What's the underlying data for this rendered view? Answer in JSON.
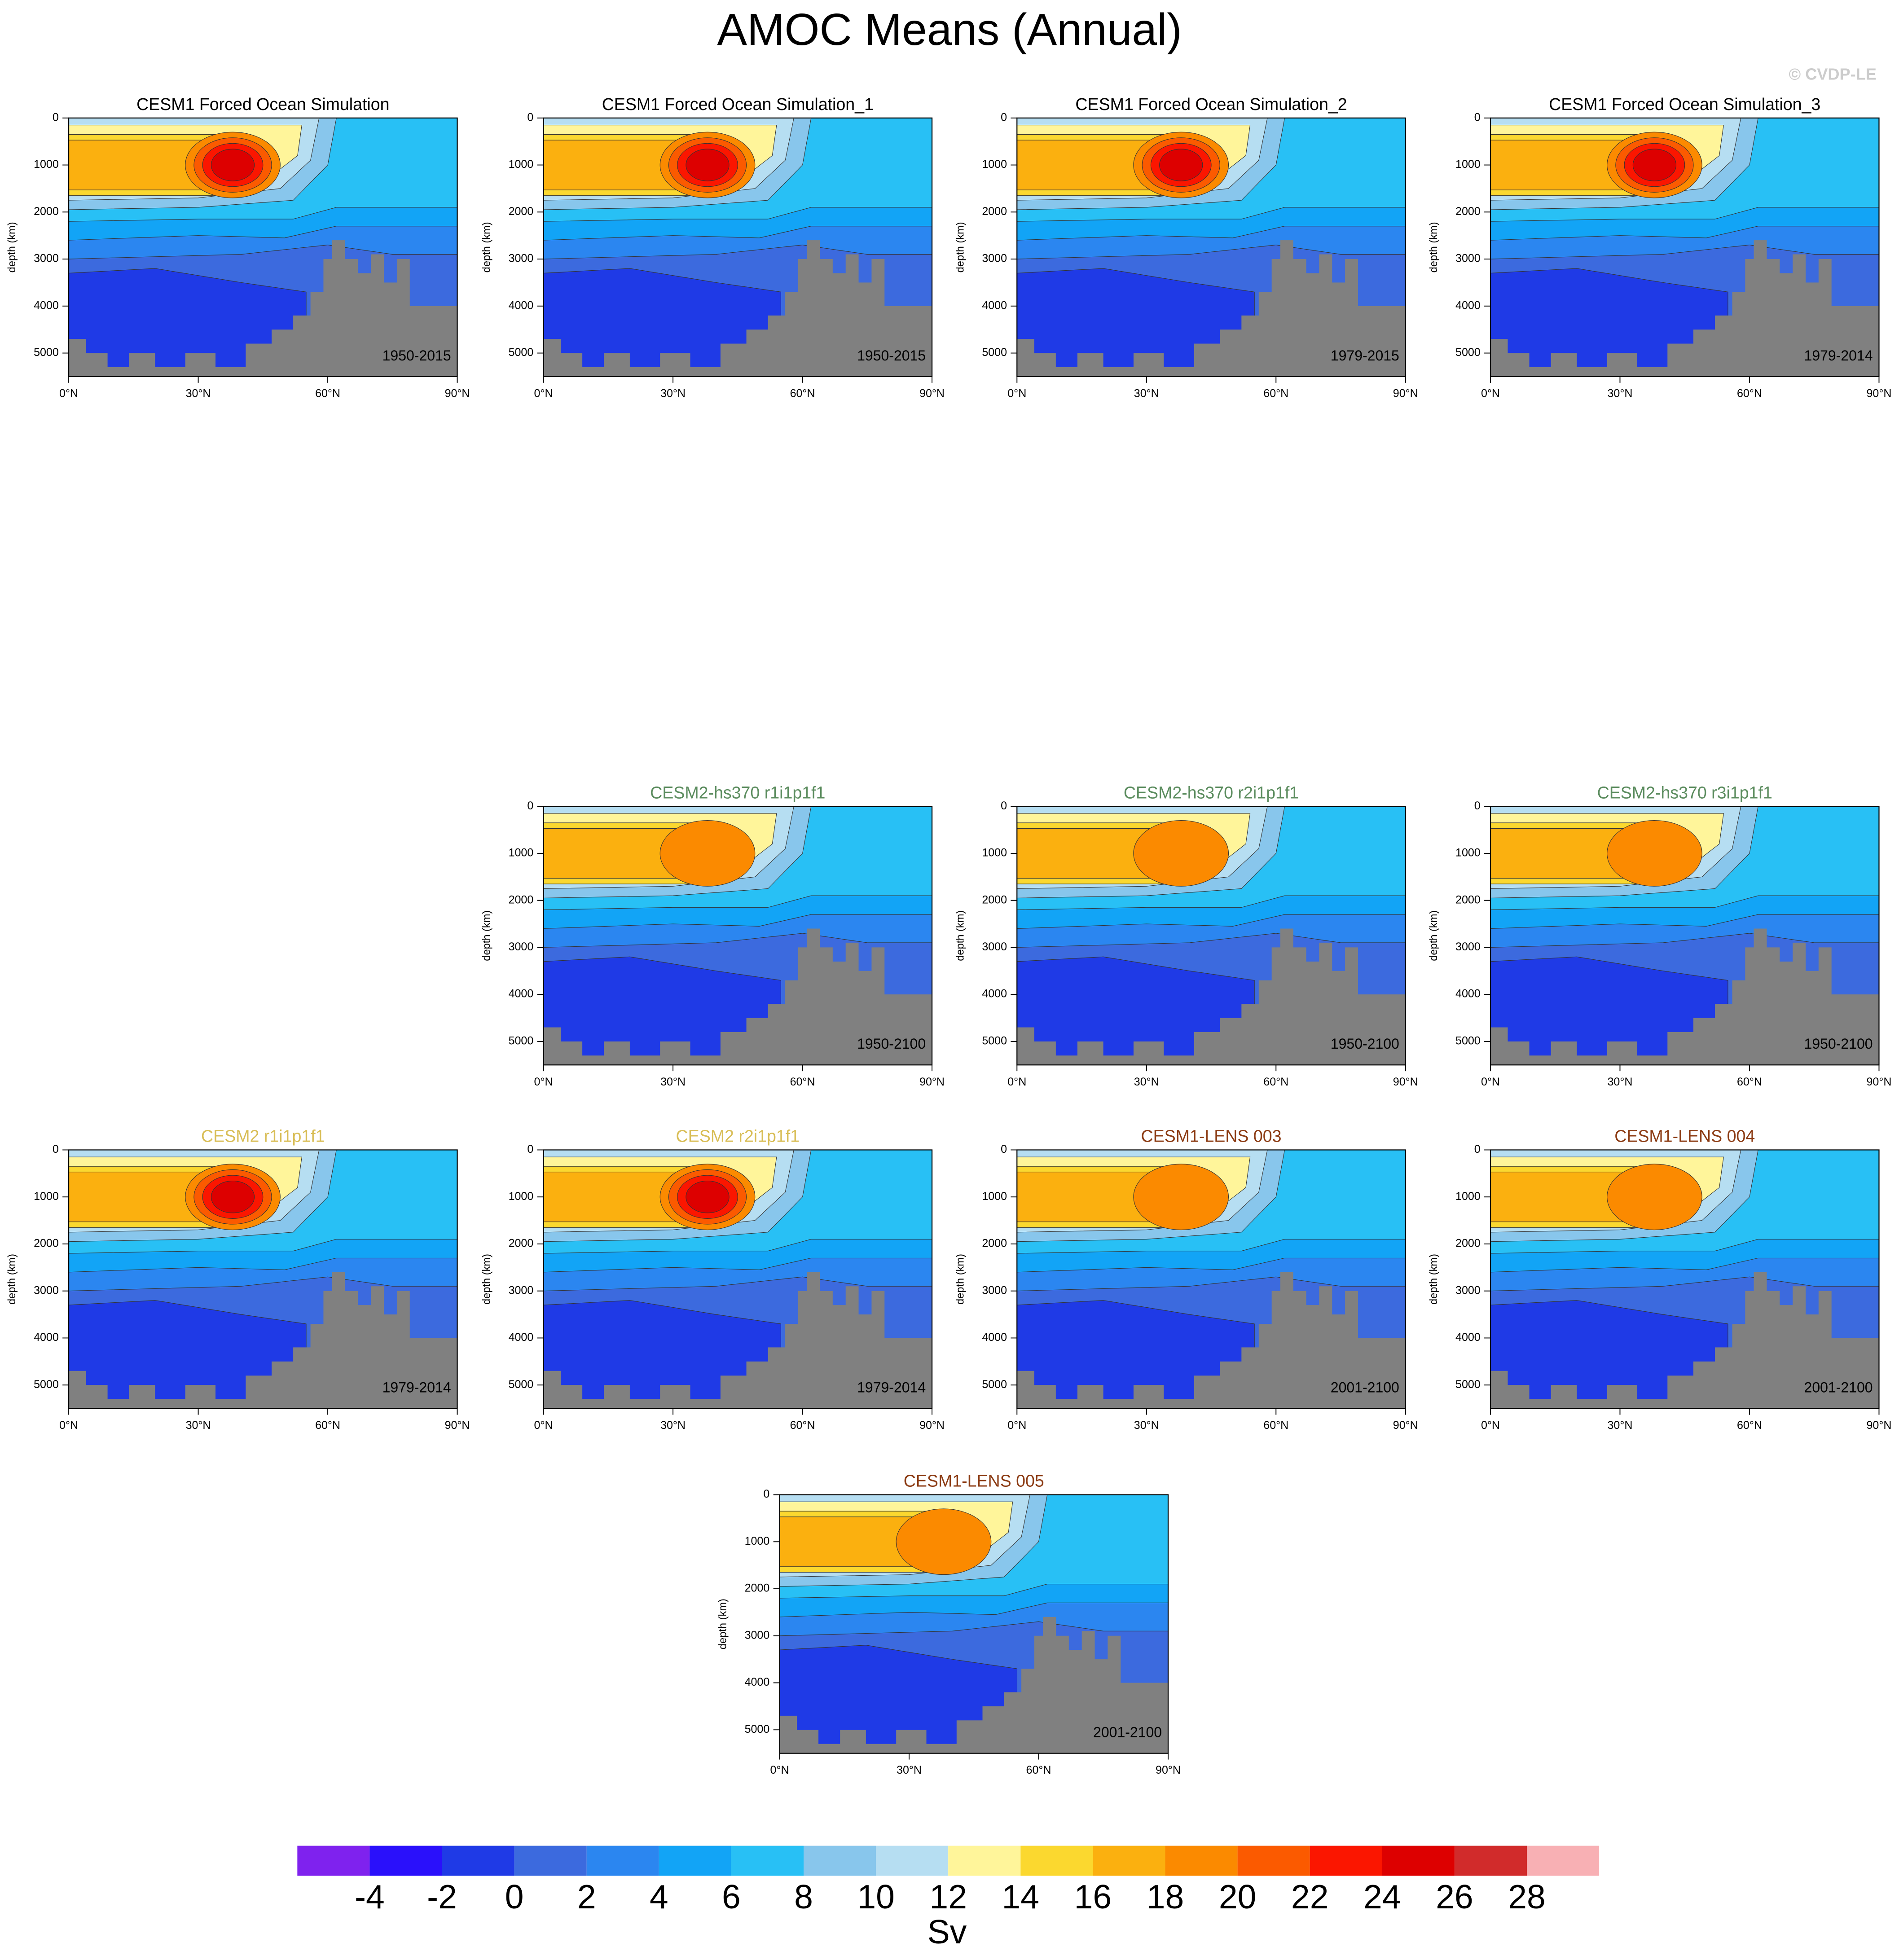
{
  "title": "AMOC Means (Annual)",
  "credit": "© CVDP-LE",
  "chart_data": [
    {
      "type": "contour",
      "title": "CESM1 Forced Ocean Simulation",
      "title_color": "#000000",
      "period": "1950-2015",
      "ylabel": "depth (km)",
      "xlim": [
        0,
        90
      ],
      "xticks": [
        {
          "value": 0,
          "label": "0°N"
        },
        {
          "value": 30,
          "label": "30°N"
        },
        {
          "value": 60,
          "label": "60°N"
        },
        {
          "value": 90,
          "label": "90°N"
        }
      ],
      "ylim": [
        0,
        5500
      ],
      "y_reversed": true,
      "yticks": [
        0,
        1000,
        2000,
        3000,
        4000,
        5000
      ]
    },
    {
      "type": "contour",
      "title": "CESM1 Forced Ocean Simulation_1",
      "title_color": "#000000",
      "period": "1950-2015",
      "ylabel": "depth (km)",
      "xlim": [
        0,
        90
      ],
      "xticks": [
        {
          "value": 0,
          "label": "0°N"
        },
        {
          "value": 30,
          "label": "30°N"
        },
        {
          "value": 60,
          "label": "60°N"
        },
        {
          "value": 90,
          "label": "90°N"
        }
      ],
      "ylim": [
        0,
        5500
      ],
      "y_reversed": true,
      "yticks": [
        0,
        1000,
        2000,
        3000,
        4000,
        5000
      ]
    },
    {
      "type": "contour",
      "title": "CESM1 Forced Ocean Simulation_2",
      "title_color": "#000000",
      "period": "1979-2015",
      "ylabel": "depth (km)",
      "xlim": [
        0,
        90
      ],
      "xticks": [
        {
          "value": 0,
          "label": "0°N"
        },
        {
          "value": 30,
          "label": "30°N"
        },
        {
          "value": 60,
          "label": "60°N"
        },
        {
          "value": 90,
          "label": "90°N"
        }
      ],
      "ylim": [
        0,
        5500
      ],
      "y_reversed": true,
      "yticks": [
        0,
        1000,
        2000,
        3000,
        4000,
        5000
      ]
    },
    {
      "type": "contour",
      "title": "CESM1 Forced Ocean Simulation_3",
      "title_color": "#000000",
      "period": "1979-2014",
      "ylabel": "depth (km)",
      "xlim": [
        0,
        90
      ],
      "xticks": [
        {
          "value": 0,
          "label": "0°N"
        },
        {
          "value": 30,
          "label": "30°N"
        },
        {
          "value": 60,
          "label": "60°N"
        },
        {
          "value": 90,
          "label": "90°N"
        }
      ],
      "ylim": [
        0,
        5500
      ],
      "y_reversed": true,
      "yticks": [
        0,
        1000,
        2000,
        3000,
        4000,
        5000
      ]
    },
    {
      "type": "contour",
      "title": "CESM2-hs370 r1i1p1f1",
      "title_color": "#5b8c5e",
      "period": "1950-2100",
      "ylabel": "depth (km)",
      "xlim": [
        0,
        90
      ],
      "xticks": [
        {
          "value": 0,
          "label": "0°N"
        },
        {
          "value": 30,
          "label": "30°N"
        },
        {
          "value": 60,
          "label": "60°N"
        },
        {
          "value": 90,
          "label": "90°N"
        }
      ],
      "ylim": [
        0,
        5500
      ],
      "y_reversed": true,
      "yticks": [
        0,
        1000,
        2000,
        3000,
        4000,
        5000
      ]
    },
    {
      "type": "contour",
      "title": "CESM2-hs370 r2i1p1f1",
      "title_color": "#5b8c5e",
      "period": "1950-2100",
      "ylabel": "depth (km)",
      "xlim": [
        0,
        90
      ],
      "xticks": [
        {
          "value": 0,
          "label": "0°N"
        },
        {
          "value": 30,
          "label": "30°N"
        },
        {
          "value": 60,
          "label": "60°N"
        },
        {
          "value": 90,
          "label": "90°N"
        }
      ],
      "ylim": [
        0,
        5500
      ],
      "y_reversed": true,
      "yticks": [
        0,
        1000,
        2000,
        3000,
        4000,
        5000
      ]
    },
    {
      "type": "contour",
      "title": "CESM2-hs370 r3i1p1f1",
      "title_color": "#5b8c5e",
      "period": "1950-2100",
      "ylabel": "depth (km)",
      "xlim": [
        0,
        90
      ],
      "xticks": [
        {
          "value": 0,
          "label": "0°N"
        },
        {
          "value": 30,
          "label": "30°N"
        },
        {
          "value": 60,
          "label": "60°N"
        },
        {
          "value": 90,
          "label": "90°N"
        }
      ],
      "ylim": [
        0,
        5500
      ],
      "y_reversed": true,
      "yticks": [
        0,
        1000,
        2000,
        3000,
        4000,
        5000
      ]
    },
    {
      "type": "contour",
      "title": "CESM2 r1i1p1f1",
      "title_color": "#d8bd55",
      "period": "1979-2014",
      "ylabel": "depth (km)",
      "xlim": [
        0,
        90
      ],
      "xticks": [
        {
          "value": 0,
          "label": "0°N"
        },
        {
          "value": 30,
          "label": "30°N"
        },
        {
          "value": 60,
          "label": "60°N"
        },
        {
          "value": 90,
          "label": "90°N"
        }
      ],
      "ylim": [
        0,
        5500
      ],
      "y_reversed": true,
      "yticks": [
        0,
        1000,
        2000,
        3000,
        4000,
        5000
      ]
    },
    {
      "type": "contour",
      "title": "CESM2 r2i1p1f1",
      "title_color": "#d8bd55",
      "period": "1979-2014",
      "ylabel": "depth (km)",
      "xlim": [
        0,
        90
      ],
      "xticks": [
        {
          "value": 0,
          "label": "0°N"
        },
        {
          "value": 30,
          "label": "30°N"
        },
        {
          "value": 60,
          "label": "60°N"
        },
        {
          "value": 90,
          "label": "90°N"
        }
      ],
      "ylim": [
        0,
        5500
      ],
      "y_reversed": true,
      "yticks": [
        0,
        1000,
        2000,
        3000,
        4000,
        5000
      ]
    },
    {
      "type": "contour",
      "title": "CESM1-LENS 003",
      "title_color": "#8b3a12",
      "period": "2001-2100",
      "ylabel": "depth (km)",
      "xlim": [
        0,
        90
      ],
      "xticks": [
        {
          "value": 0,
          "label": "0°N"
        },
        {
          "value": 30,
          "label": "30°N"
        },
        {
          "value": 60,
          "label": "60°N"
        },
        {
          "value": 90,
          "label": "90°N"
        }
      ],
      "ylim": [
        0,
        5500
      ],
      "y_reversed": true,
      "yticks": [
        0,
        1000,
        2000,
        3000,
        4000,
        5000
      ]
    },
    {
      "type": "contour",
      "title": "CESM1-LENS 004",
      "title_color": "#8b3a12",
      "period": "2001-2100",
      "ylabel": "depth (km)",
      "xlim": [
        0,
        90
      ],
      "xticks": [
        {
          "value": 0,
          "label": "0°N"
        },
        {
          "value": 30,
          "label": "30°N"
        },
        {
          "value": 60,
          "label": "60°N"
        },
        {
          "value": 90,
          "label": "90°N"
        }
      ],
      "ylim": [
        0,
        5500
      ],
      "y_reversed": true,
      "yticks": [
        0,
        1000,
        2000,
        3000,
        4000,
        5000
      ]
    },
    {
      "type": "contour",
      "title": "CESM1-LENS 005",
      "title_color": "#8b3a12",
      "period": "2001-2100",
      "ylabel": "depth (km)",
      "xlim": [
        0,
        90
      ],
      "xticks": [
        {
          "value": 0,
          "label": "0°N"
        },
        {
          "value": 30,
          "label": "30°N"
        },
        {
          "value": 60,
          "label": "60°N"
        },
        {
          "value": 90,
          "label": "90°N"
        }
      ],
      "ylim": [
        0,
        5500
      ],
      "y_reversed": true,
      "yticks": [
        0,
        1000,
        2000,
        3000,
        4000,
        5000
      ]
    }
  ],
  "colorbar": {
    "levels": [
      -4,
      -2,
      0,
      2,
      4,
      6,
      8,
      10,
      12,
      14,
      16,
      18,
      20,
      22,
      24,
      26,
      28
    ],
    "colors": [
      "#7f22ee",
      "#2a10fb",
      "#1f3ae6",
      "#3c6ade",
      "#2b86f0",
      "#12a4f6",
      "#28c0f5",
      "#88c6ec",
      "#b6def2",
      "#fff59a",
      "#fbd82f",
      "#fbb00f",
      "#fb8a00",
      "#fb5a00",
      "#fb1600",
      "#dd0000",
      "#d12b2b",
      "#f8b0b4"
    ],
    "units": "Sv"
  }
}
